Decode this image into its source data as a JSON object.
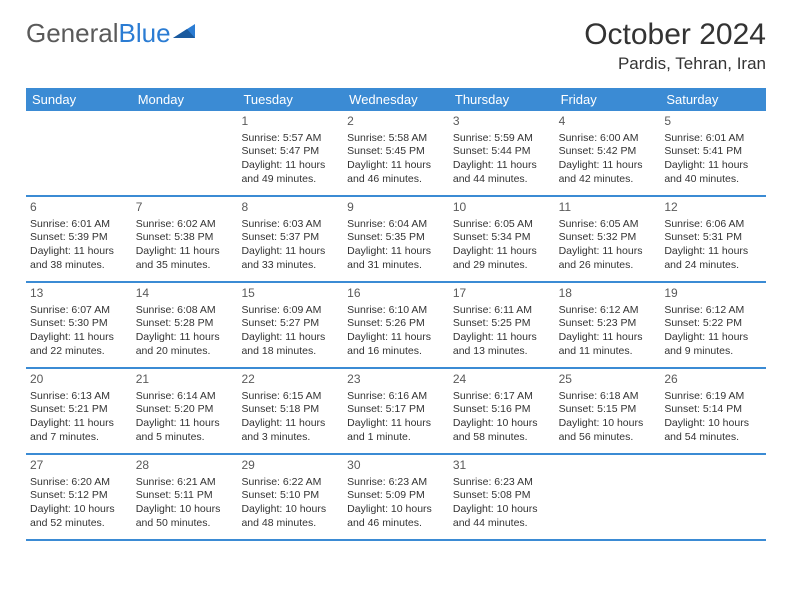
{
  "logo": {
    "textGeneral": "General",
    "textBlue": "Blue"
  },
  "header": {
    "month": "October 2024",
    "location": "Pardis, Tehran, Iran"
  },
  "colors": {
    "headerBar": "#3b8bd4",
    "logoBlue": "#2b7cd3",
    "text": "#333333",
    "dayNum": "#5a5a5a",
    "background": "#ffffff"
  },
  "weekdays": [
    "Sunday",
    "Monday",
    "Tuesday",
    "Wednesday",
    "Thursday",
    "Friday",
    "Saturday"
  ],
  "weeks": [
    [
      null,
      null,
      {
        "n": "1",
        "sr": "Sunrise: 5:57 AM",
        "ss": "Sunset: 5:47 PM",
        "d1": "Daylight: 11 hours",
        "d2": "and 49 minutes."
      },
      {
        "n": "2",
        "sr": "Sunrise: 5:58 AM",
        "ss": "Sunset: 5:45 PM",
        "d1": "Daylight: 11 hours",
        "d2": "and 46 minutes."
      },
      {
        "n": "3",
        "sr": "Sunrise: 5:59 AM",
        "ss": "Sunset: 5:44 PM",
        "d1": "Daylight: 11 hours",
        "d2": "and 44 minutes."
      },
      {
        "n": "4",
        "sr": "Sunrise: 6:00 AM",
        "ss": "Sunset: 5:42 PM",
        "d1": "Daylight: 11 hours",
        "d2": "and 42 minutes."
      },
      {
        "n": "5",
        "sr": "Sunrise: 6:01 AM",
        "ss": "Sunset: 5:41 PM",
        "d1": "Daylight: 11 hours",
        "d2": "and 40 minutes."
      }
    ],
    [
      {
        "n": "6",
        "sr": "Sunrise: 6:01 AM",
        "ss": "Sunset: 5:39 PM",
        "d1": "Daylight: 11 hours",
        "d2": "and 38 minutes."
      },
      {
        "n": "7",
        "sr": "Sunrise: 6:02 AM",
        "ss": "Sunset: 5:38 PM",
        "d1": "Daylight: 11 hours",
        "d2": "and 35 minutes."
      },
      {
        "n": "8",
        "sr": "Sunrise: 6:03 AM",
        "ss": "Sunset: 5:37 PM",
        "d1": "Daylight: 11 hours",
        "d2": "and 33 minutes."
      },
      {
        "n": "9",
        "sr": "Sunrise: 6:04 AM",
        "ss": "Sunset: 5:35 PM",
        "d1": "Daylight: 11 hours",
        "d2": "and 31 minutes."
      },
      {
        "n": "10",
        "sr": "Sunrise: 6:05 AM",
        "ss": "Sunset: 5:34 PM",
        "d1": "Daylight: 11 hours",
        "d2": "and 29 minutes."
      },
      {
        "n": "11",
        "sr": "Sunrise: 6:05 AM",
        "ss": "Sunset: 5:32 PM",
        "d1": "Daylight: 11 hours",
        "d2": "and 26 minutes."
      },
      {
        "n": "12",
        "sr": "Sunrise: 6:06 AM",
        "ss": "Sunset: 5:31 PM",
        "d1": "Daylight: 11 hours",
        "d2": "and 24 minutes."
      }
    ],
    [
      {
        "n": "13",
        "sr": "Sunrise: 6:07 AM",
        "ss": "Sunset: 5:30 PM",
        "d1": "Daylight: 11 hours",
        "d2": "and 22 minutes."
      },
      {
        "n": "14",
        "sr": "Sunrise: 6:08 AM",
        "ss": "Sunset: 5:28 PM",
        "d1": "Daylight: 11 hours",
        "d2": "and 20 minutes."
      },
      {
        "n": "15",
        "sr": "Sunrise: 6:09 AM",
        "ss": "Sunset: 5:27 PM",
        "d1": "Daylight: 11 hours",
        "d2": "and 18 minutes."
      },
      {
        "n": "16",
        "sr": "Sunrise: 6:10 AM",
        "ss": "Sunset: 5:26 PM",
        "d1": "Daylight: 11 hours",
        "d2": "and 16 minutes."
      },
      {
        "n": "17",
        "sr": "Sunrise: 6:11 AM",
        "ss": "Sunset: 5:25 PM",
        "d1": "Daylight: 11 hours",
        "d2": "and 13 minutes."
      },
      {
        "n": "18",
        "sr": "Sunrise: 6:12 AM",
        "ss": "Sunset: 5:23 PM",
        "d1": "Daylight: 11 hours",
        "d2": "and 11 minutes."
      },
      {
        "n": "19",
        "sr": "Sunrise: 6:12 AM",
        "ss": "Sunset: 5:22 PM",
        "d1": "Daylight: 11 hours",
        "d2": "and 9 minutes."
      }
    ],
    [
      {
        "n": "20",
        "sr": "Sunrise: 6:13 AM",
        "ss": "Sunset: 5:21 PM",
        "d1": "Daylight: 11 hours",
        "d2": "and 7 minutes."
      },
      {
        "n": "21",
        "sr": "Sunrise: 6:14 AM",
        "ss": "Sunset: 5:20 PM",
        "d1": "Daylight: 11 hours",
        "d2": "and 5 minutes."
      },
      {
        "n": "22",
        "sr": "Sunrise: 6:15 AM",
        "ss": "Sunset: 5:18 PM",
        "d1": "Daylight: 11 hours",
        "d2": "and 3 minutes."
      },
      {
        "n": "23",
        "sr": "Sunrise: 6:16 AM",
        "ss": "Sunset: 5:17 PM",
        "d1": "Daylight: 11 hours",
        "d2": "and 1 minute."
      },
      {
        "n": "24",
        "sr": "Sunrise: 6:17 AM",
        "ss": "Sunset: 5:16 PM",
        "d1": "Daylight: 10 hours",
        "d2": "and 58 minutes."
      },
      {
        "n": "25",
        "sr": "Sunrise: 6:18 AM",
        "ss": "Sunset: 5:15 PM",
        "d1": "Daylight: 10 hours",
        "d2": "and 56 minutes."
      },
      {
        "n": "26",
        "sr": "Sunrise: 6:19 AM",
        "ss": "Sunset: 5:14 PM",
        "d1": "Daylight: 10 hours",
        "d2": "and 54 minutes."
      }
    ],
    [
      {
        "n": "27",
        "sr": "Sunrise: 6:20 AM",
        "ss": "Sunset: 5:12 PM",
        "d1": "Daylight: 10 hours",
        "d2": "and 52 minutes."
      },
      {
        "n": "28",
        "sr": "Sunrise: 6:21 AM",
        "ss": "Sunset: 5:11 PM",
        "d1": "Daylight: 10 hours",
        "d2": "and 50 minutes."
      },
      {
        "n": "29",
        "sr": "Sunrise: 6:22 AM",
        "ss": "Sunset: 5:10 PM",
        "d1": "Daylight: 10 hours",
        "d2": "and 48 minutes."
      },
      {
        "n": "30",
        "sr": "Sunrise: 6:23 AM",
        "ss": "Sunset: 5:09 PM",
        "d1": "Daylight: 10 hours",
        "d2": "and 46 minutes."
      },
      {
        "n": "31",
        "sr": "Sunrise: 6:23 AM",
        "ss": "Sunset: 5:08 PM",
        "d1": "Daylight: 10 hours",
        "d2": "and 44 minutes."
      },
      null,
      null
    ]
  ]
}
